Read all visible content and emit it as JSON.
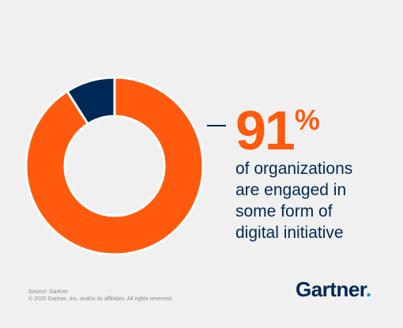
{
  "chart_data": {
    "type": "pie",
    "style": "donut",
    "slices": [
      {
        "value": 91,
        "color": "#ff5a0d"
      },
      {
        "value": 9,
        "color": "#002856"
      }
    ]
  },
  "headline": {
    "number": "91",
    "percent_sign": "%",
    "color": "#ff5a0d"
  },
  "caption": {
    "lines": [
      "of organizations",
      "are engaged in",
      "some form of",
      "digital initiative"
    ]
  },
  "footer": {
    "source": "Source: Gartner",
    "copyright": "© 2020 Gartner, Inc. and/or its affiliates. All rights reserved."
  },
  "logo": {
    "text": "Gartner",
    "dot": "."
  }
}
